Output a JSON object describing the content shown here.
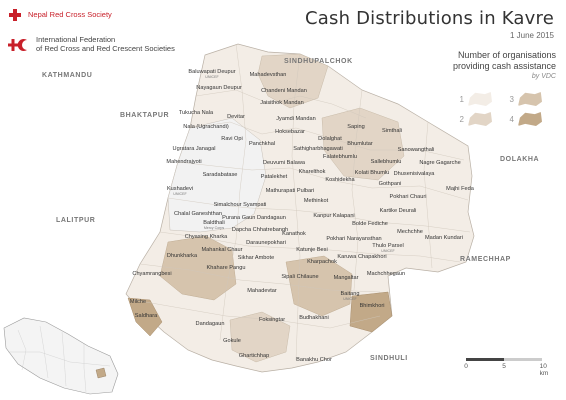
{
  "header": {
    "org1": "Nepal Red Cross Society",
    "org2_line1": "International Federation",
    "org2_line2": "of Red Cross and Red Crescent Societies",
    "title": "Cash Distributions in Kavre",
    "date": "1 June 2015"
  },
  "legend": {
    "title_line1": "Number of organisations",
    "title_line2": "providing cash assistance",
    "subtitle": "by VDC",
    "items": [
      {
        "label": "1",
        "color": "#f3ede6"
      },
      {
        "label": "2",
        "color": "#e2d5c6"
      },
      {
        "label": "3",
        "color": "#d6c4ad"
      },
      {
        "label": "4",
        "color": "#c2a988"
      }
    ]
  },
  "regions": {
    "kathmandu": "KATHMANDU",
    "sindhupalchok": "SINDHUPALCHOK",
    "bhaktapur": "BHAKTAPUR",
    "dolakha": "DOLAKHA",
    "lalitpur": "LALITPUR",
    "ramechhap": "RAMECHHAP",
    "sindhuli": "SINDHULI"
  },
  "scale": {
    "t0": "0",
    "t5": "5",
    "t10": "10 km"
  },
  "colors": {
    "accent": "#c8202a",
    "land": "#f3ede6",
    "no_data": "#f0f0f0"
  },
  "vdcs": [
    {
      "name": "Baluwapati Deupur",
      "org": "UNICEF"
    },
    {
      "name": "Mahadevsthan",
      "org": ""
    },
    {
      "name": "Nayagaun Deupur",
      "org": ""
    },
    {
      "name": "Chandeni Mandan",
      "org": ""
    },
    {
      "name": "Jaisithok Mandan",
      "org": ""
    },
    {
      "name": "Tukucha Nala",
      "org": ""
    },
    {
      "name": "Devitar",
      "org": ""
    },
    {
      "name": "Nala (Ugrachandi)",
      "org": ""
    },
    {
      "name": "Jyamdi Mandan",
      "org": ""
    },
    {
      "name": "Hoksebazar",
      "org": ""
    },
    {
      "name": "Dolalghat",
      "org": ""
    },
    {
      "name": "Ravi Opi",
      "org": ""
    },
    {
      "name": "Sathigharbhagawati",
      "org": ""
    },
    {
      "name": "Ugratara Janagal",
      "org": ""
    },
    {
      "name": "Panchkhal",
      "org": ""
    },
    {
      "name": "Bhumlutar",
      "org": ""
    },
    {
      "name": "Saping",
      "org": ""
    },
    {
      "name": "Simthali",
      "org": ""
    },
    {
      "name": "Falatebhumlu",
      "org": ""
    },
    {
      "name": "Sallebhumlu",
      "org": ""
    },
    {
      "name": "Mahendrajyoti",
      "org": ""
    },
    {
      "name": "Deuvumi Balawa",
      "org": ""
    },
    {
      "name": "Kharelthok",
      "org": ""
    },
    {
      "name": "Kolati Bhumlu",
      "org": ""
    },
    {
      "name": "Sanowangthali",
      "org": ""
    },
    {
      "name": "Nagre Gagarche",
      "org": ""
    },
    {
      "name": "Saradabatase",
      "org": ""
    },
    {
      "name": "Patalekhet",
      "org": ""
    },
    {
      "name": "Koshidekha",
      "org": ""
    },
    {
      "name": "Dhusenisivalaya",
      "org": ""
    },
    {
      "name": "Gothpani",
      "org": ""
    },
    {
      "name": "Kushadevi",
      "org": "UNICEF"
    },
    {
      "name": "Mathurapati Pulbari",
      "org": ""
    },
    {
      "name": "Methinkot",
      "org": ""
    },
    {
      "name": "Pokhari Chauri",
      "org": ""
    },
    {
      "name": "Majhi Feda",
      "org": ""
    },
    {
      "name": "Simalchour Syampati",
      "org": ""
    },
    {
      "name": "Chalal Ganeshthan",
      "org": ""
    },
    {
      "name": "Kanpur Kalapani",
      "org": ""
    },
    {
      "name": "Baldthali",
      "org": "Mercy Corps"
    },
    {
      "name": "Purana Gaun Dandagaun",
      "org": ""
    },
    {
      "name": "Kartike Deurali",
      "org": ""
    },
    {
      "name": "Bolde Fediche",
      "org": ""
    },
    {
      "name": "Dapcha Chhatrebangh",
      "org": ""
    },
    {
      "name": "Chyasing Kharka",
      "org": ""
    },
    {
      "name": "Kanathok",
      "org": ""
    },
    {
      "name": "Mechchhe",
      "org": ""
    },
    {
      "name": "Pokhari Narayansthan",
      "org": ""
    },
    {
      "name": "Daraunepokhari",
      "org": ""
    },
    {
      "name": "Thulo Parsel",
      "org": "UNICEF"
    },
    {
      "name": "Mahankal Chaur",
      "org": ""
    },
    {
      "name": "Dhunkharka",
      "org": ""
    },
    {
      "name": "Madan Kundari",
      "org": ""
    },
    {
      "name": "Katunje Besi",
      "org": ""
    },
    {
      "name": "Sikhar Ambote",
      "org": ""
    },
    {
      "name": "Karuwa Chapakhori",
      "org": ""
    },
    {
      "name": "Kharpachok",
      "org": ""
    },
    {
      "name": "Khahare Pangu",
      "org": ""
    },
    {
      "name": "Chyamrangbesi",
      "org": ""
    },
    {
      "name": "Sipali Chilaune",
      "org": ""
    },
    {
      "name": "Mangaltar",
      "org": ""
    },
    {
      "name": "Machchhegaun",
      "org": ""
    },
    {
      "name": "Mahadevtar",
      "org": ""
    },
    {
      "name": "Baitang",
      "org": "UNICEF"
    },
    {
      "name": "Milche",
      "org": ""
    },
    {
      "name": "Bhimkhori",
      "org": ""
    },
    {
      "name": "Saldhara",
      "org": ""
    },
    {
      "name": "Foksingtar",
      "org": ""
    },
    {
      "name": "Budhakhani",
      "org": ""
    },
    {
      "name": "Dandagaun",
      "org": ""
    },
    {
      "name": "Gokule",
      "org": ""
    },
    {
      "name": "Ghartichhap",
      "org": ""
    },
    {
      "name": "Banakhu Chor",
      "org": ""
    }
  ]
}
